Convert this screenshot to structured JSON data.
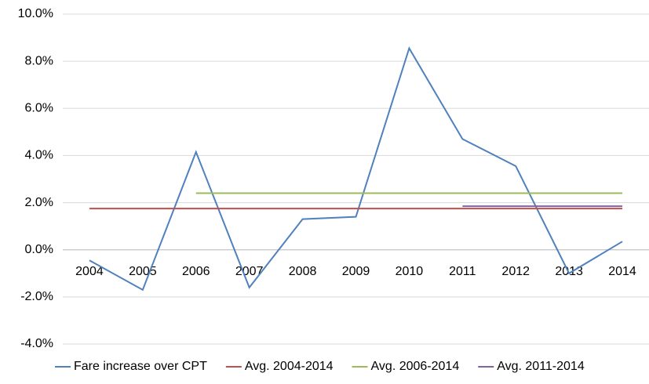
{
  "chart_data": {
    "type": "line",
    "categories": [
      "2004",
      "2005",
      "2006",
      "2007",
      "2008",
      "2009",
      "2010",
      "2011",
      "2012",
      "2013",
      "2014"
    ],
    "series": [
      {
        "name": "Fare increase over CPT",
        "color": "#4f81bd",
        "values": [
          -0.45,
          -1.7,
          4.15,
          -1.6,
          1.3,
          1.4,
          8.55,
          4.7,
          3.55,
          -1.0,
          0.35
        ]
      },
      {
        "name": "Avg. 2004-2014",
        "color": "#c0504d",
        "values": [
          1.75,
          1.75,
          1.75,
          1.75,
          1.75,
          1.75,
          1.75,
          1.75,
          1.75,
          1.75,
          1.75
        ]
      },
      {
        "name": "Avg. 2006-2014",
        "color": "#9bbb59",
        "values": [
          null,
          null,
          2.4,
          2.4,
          2.4,
          2.4,
          2.4,
          2.4,
          2.4,
          2.4,
          2.4
        ]
      },
      {
        "name": "Avg. 2011-2014",
        "color": "#8064a2",
        "values": [
          null,
          null,
          null,
          null,
          null,
          null,
          null,
          1.85,
          1.85,
          1.85,
          1.85
        ]
      }
    ],
    "ylim": [
      -4,
      10
    ],
    "yticks": [
      {
        "value": -4,
        "label": "-4.0%"
      },
      {
        "value": -2,
        "label": "-2.0%"
      },
      {
        "value": 0,
        "label": "0.0%"
      },
      {
        "value": 2,
        "label": "2.0%"
      },
      {
        "value": 4,
        "label": "4.0%"
      },
      {
        "value": 6,
        "label": "6.0%"
      },
      {
        "value": 8,
        "label": "8.0%"
      },
      {
        "value": 10,
        "label": "10.0%"
      }
    ],
    "grid": true,
    "legend": "bottom"
  }
}
